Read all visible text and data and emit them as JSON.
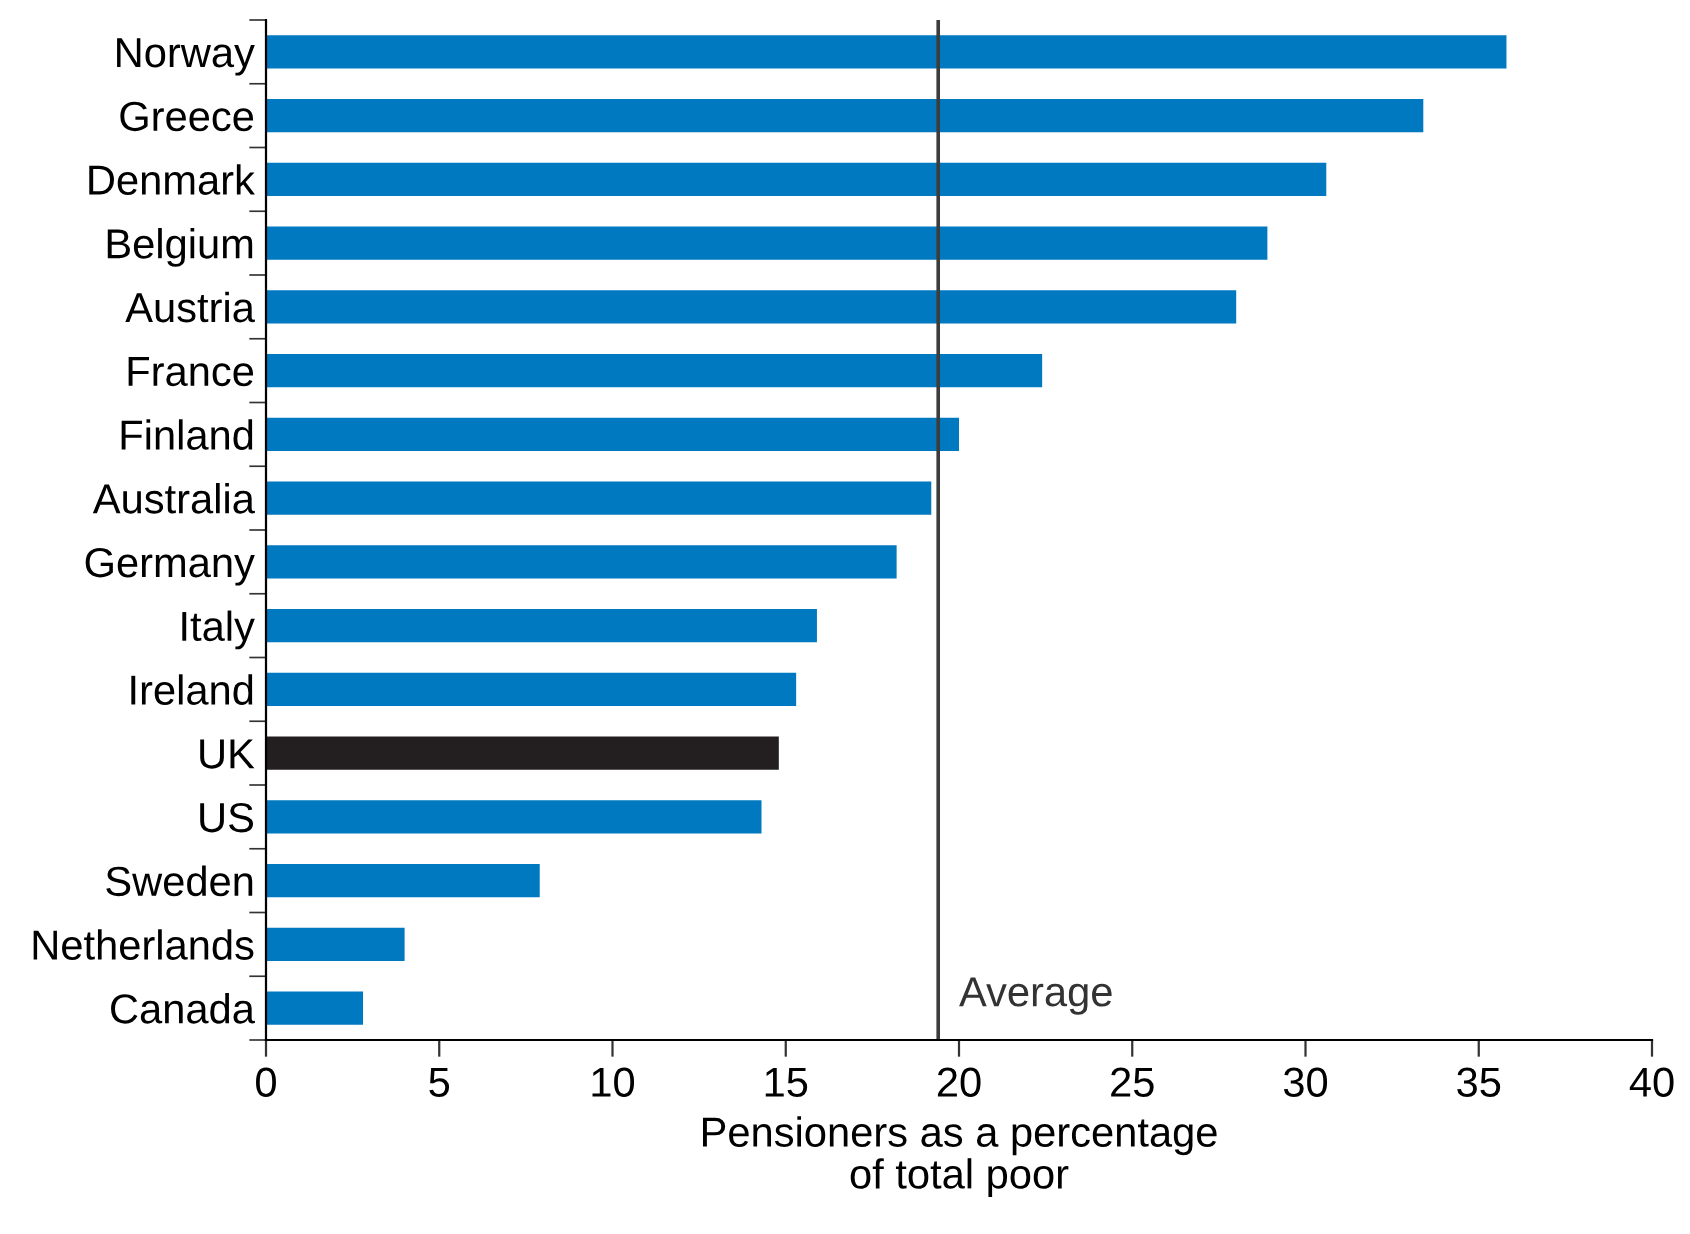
{
  "chart_data": {
    "type": "bar",
    "orientation": "horizontal",
    "categories": [
      "Norway",
      "Greece",
      "Denmark",
      "Belgium",
      "Austria",
      "France",
      "Finland",
      "Australia",
      "Germany",
      "Italy",
      "Ireland",
      "UK",
      "US",
      "Sweden",
      "Netherlands",
      "Canada"
    ],
    "values": [
      35.8,
      33.4,
      30.6,
      28.9,
      28.0,
      22.4,
      20.0,
      19.2,
      18.2,
      15.9,
      15.3,
      14.8,
      14.3,
      7.9,
      4.0,
      2.8
    ],
    "colors": [
      "#0079c1",
      "#0079c1",
      "#0079c1",
      "#0079c1",
      "#0079c1",
      "#0079c1",
      "#0079c1",
      "#0079c1",
      "#0079c1",
      "#0079c1",
      "#0079c1",
      "#231f20",
      "#0079c1",
      "#0079c1",
      "#0079c1",
      "#0079c1"
    ],
    "xlabel": "Pensioners as a percentage\nof total poor",
    "xlim": [
      0,
      40
    ],
    "xticks": [
      0,
      5,
      10,
      15,
      20,
      25,
      30,
      35,
      40
    ],
    "ref_lines": [
      {
        "axis": "x",
        "value": 19.4,
        "label": "Average",
        "color": "#3c3c3c"
      }
    ],
    "grid": false
  }
}
